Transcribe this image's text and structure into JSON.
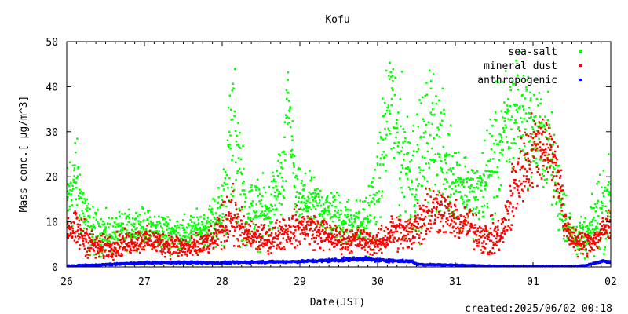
{
  "chart_data": {
    "type": "scatter",
    "title": "Kofu",
    "xlabel": "Date(JST)",
    "ylabel_main": "Mass conc.[ μg/m^3]",
    "ylim": [
      0,
      50
    ],
    "y_ticks": [
      0,
      10,
      20,
      30,
      40,
      50
    ],
    "x_ticks": [
      {
        "day": 0,
        "label": "26"
      },
      {
        "day": 1,
        "label": "27"
      },
      {
        "day": 2,
        "label": "28"
      },
      {
        "day": 3,
        "label": "29"
      },
      {
        "day": 4,
        "label": "30"
      },
      {
        "day": 5,
        "label": "31"
      },
      {
        "day": 6,
        "label": "01"
      },
      {
        "day": 7,
        "label": "02"
      }
    ],
    "xlim_days": [
      0,
      7
    ],
    "legend_position": "top-right",
    "series": [
      {
        "name": "sea-salt",
        "color": "#00ff00",
        "profile": [
          [
            0.0,
            14,
            7
          ],
          [
            0.1,
            20,
            8
          ],
          [
            0.3,
            8,
            4
          ],
          [
            0.6,
            7,
            3
          ],
          [
            0.9,
            9,
            3
          ],
          [
            1.2,
            8,
            3
          ],
          [
            1.5,
            7,
            3
          ],
          [
            1.8,
            9,
            3
          ],
          [
            2.0,
            12,
            6
          ],
          [
            2.15,
            30,
            15
          ],
          [
            2.3,
            12,
            6
          ],
          [
            2.6,
            12,
            5
          ],
          [
            2.8,
            20,
            8
          ],
          [
            2.85,
            38,
            6
          ],
          [
            2.95,
            15,
            5
          ],
          [
            3.2,
            14,
            4
          ],
          [
            3.5,
            11,
            4
          ],
          [
            3.8,
            9,
            4
          ],
          [
            4.0,
            15,
            8
          ],
          [
            4.15,
            38,
            12
          ],
          [
            4.3,
            25,
            12
          ],
          [
            4.5,
            20,
            10
          ],
          [
            4.7,
            30,
            12
          ],
          [
            4.9,
            22,
            8
          ],
          [
            5.1,
            18,
            6
          ],
          [
            5.3,
            15,
            6
          ],
          [
            5.45,
            22,
            10
          ],
          [
            5.6,
            28,
            10
          ],
          [
            5.8,
            35,
            10
          ],
          [
            6.0,
            30,
            8
          ],
          [
            6.2,
            27,
            8
          ],
          [
            6.35,
            15,
            6
          ],
          [
            6.5,
            7,
            3
          ],
          [
            6.7,
            6,
            3
          ],
          [
            6.85,
            12,
            8
          ],
          [
            7.0,
            16,
            6
          ]
        ]
      },
      {
        "name": "mineral dust",
        "color": "#ff0000",
        "profile": [
          [
            0.0,
            9,
            3
          ],
          [
            0.2,
            7,
            3
          ],
          [
            0.4,
            4,
            2
          ],
          [
            0.7,
            5,
            2
          ],
          [
            1.0,
            6,
            2
          ],
          [
            1.3,
            5,
            2
          ],
          [
            1.6,
            4,
            2
          ],
          [
            1.9,
            6,
            2
          ],
          [
            2.1,
            12,
            5
          ],
          [
            2.3,
            7,
            3
          ],
          [
            2.6,
            6,
            2
          ],
          [
            2.8,
            8,
            3
          ],
          [
            3.0,
            9,
            3
          ],
          [
            3.2,
            8,
            3
          ],
          [
            3.5,
            6,
            2
          ],
          [
            3.8,
            6,
            2
          ],
          [
            4.0,
            5,
            2
          ],
          [
            4.2,
            8,
            3
          ],
          [
            4.4,
            7,
            3
          ],
          [
            4.6,
            12,
            5
          ],
          [
            4.8,
            13,
            4
          ],
          [
            5.0,
            10,
            3
          ],
          [
            5.2,
            9,
            3
          ],
          [
            5.4,
            6,
            3
          ],
          [
            5.6,
            7,
            3
          ],
          [
            5.8,
            20,
            7
          ],
          [
            6.0,
            26,
            6
          ],
          [
            6.15,
            28,
            6
          ],
          [
            6.35,
            20,
            5
          ],
          [
            6.4,
            9,
            3
          ],
          [
            6.6,
            5,
            2
          ],
          [
            6.8,
            6,
            2
          ],
          [
            7.0,
            10,
            3
          ]
        ]
      },
      {
        "name": "anthropogenic",
        "color": "#0000ff",
        "profile": [
          [
            0.0,
            0.2,
            0.1
          ],
          [
            0.5,
            0.5,
            0.15
          ],
          [
            1.0,
            0.9,
            0.2
          ],
          [
            1.5,
            1.0,
            0.2
          ],
          [
            2.0,
            0.9,
            0.2
          ],
          [
            2.5,
            1.1,
            0.2
          ],
          [
            3.0,
            1.2,
            0.2
          ],
          [
            3.5,
            1.5,
            0.3
          ],
          [
            3.8,
            1.8,
            0.3
          ],
          [
            4.0,
            1.5,
            0.3
          ],
          [
            4.3,
            1.3,
            0.2
          ],
          [
            4.45,
            1.2,
            0.2
          ],
          [
            4.5,
            0.6,
            0.15
          ],
          [
            5.0,
            0.4,
            0.1
          ],
          [
            5.5,
            0.2,
            0.1
          ],
          [
            6.0,
            0.1,
            0.05
          ],
          [
            6.5,
            0.1,
            0.05
          ],
          [
            6.7,
            0.4,
            0.1
          ],
          [
            6.9,
            1.3,
            0.2
          ],
          [
            7.0,
            1.0,
            0.2
          ]
        ]
      }
    ]
  },
  "footer": {
    "created": "created:2025/06/02 00:18"
  }
}
